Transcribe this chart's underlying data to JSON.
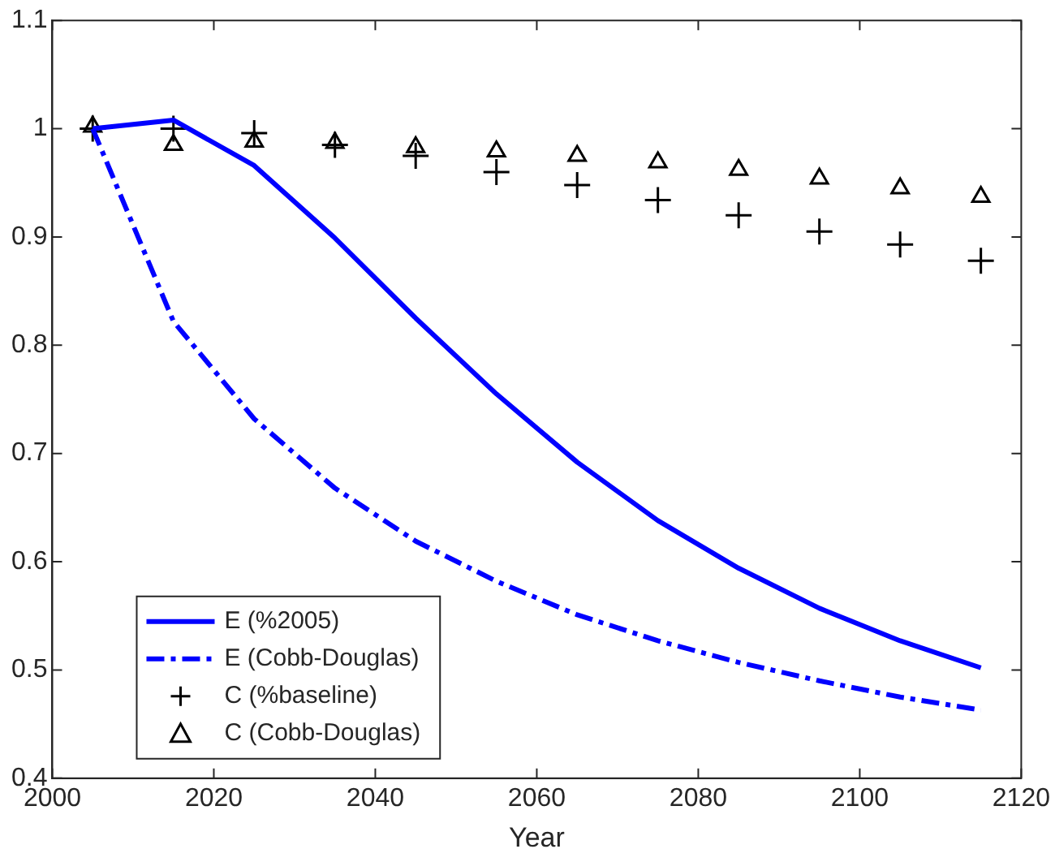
{
  "chart_data": {
    "type": "line",
    "xlabel": "Year",
    "x": [
      2005,
      2015,
      2025,
      2035,
      2045,
      2055,
      2065,
      2075,
      2085,
      2095,
      2105,
      2115
    ],
    "series": [
      {
        "name": "E (%2005)",
        "color": "#0000ff",
        "line_style": "solid",
        "marker": "none",
        "values": [
          1.0,
          1.008,
          0.966,
          0.899,
          0.825,
          0.755,
          0.692,
          0.638,
          0.594,
          0.557,
          0.527,
          0.502
        ]
      },
      {
        "name": "E (Cobb-Douglas)",
        "color": "#0000ff",
        "line_style": "dashdot",
        "marker": "none",
        "values": [
          1.0,
          0.822,
          0.732,
          0.668,
          0.619,
          0.582,
          0.551,
          0.527,
          0.507,
          0.49,
          0.475,
          0.463
        ]
      },
      {
        "name": "C (%baseline)",
        "type": "scatter",
        "color": "#000000",
        "marker": "cross",
        "values": [
          1.0,
          1.0,
          0.996,
          0.985,
          0.975,
          0.96,
          0.948,
          0.934,
          0.92,
          0.905,
          0.893,
          0.878
        ]
      },
      {
        "name": "C (Cobb-Douglas)",
        "type": "scatter",
        "color": "#000000",
        "marker": "triangle",
        "values": [
          1.002,
          0.985,
          0.988,
          0.987,
          0.983,
          0.979,
          0.975,
          0.969,
          0.962,
          0.954,
          0.945,
          0.937
        ]
      }
    ],
    "xlim": [
      2000,
      2120
    ],
    "xticks": [
      2000,
      2020,
      2040,
      2060,
      2080,
      2100,
      2120
    ],
    "ylim": [
      0.4,
      1.1
    ],
    "yticks": [
      0.4,
      0.5,
      0.6,
      0.7,
      0.8,
      0.9,
      1,
      1.1
    ],
    "grid": false,
    "legend": "bottom left"
  }
}
